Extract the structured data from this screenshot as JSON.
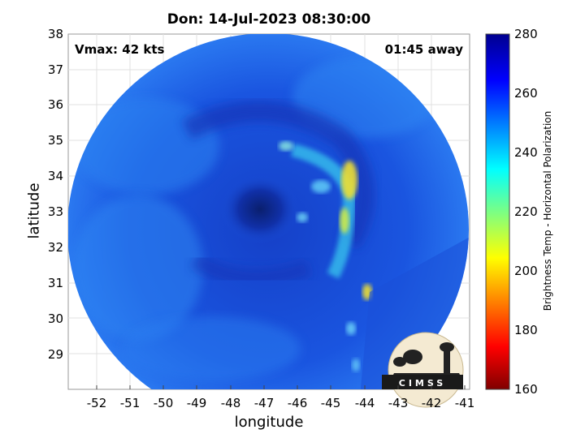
{
  "title": "Don: 14-Jul-2023 08:30:00",
  "vmax_label": "Vmax: 42 kts",
  "time_label": "01:45 away",
  "xlabel": "longitude",
  "ylabel": "latitude",
  "x_ticks": [
    "-52",
    "-51",
    "-50",
    "-49",
    "-48",
    "-47",
    "-46",
    "-45",
    "-44",
    "-43",
    "-42",
    "-41"
  ],
  "y_ticks": [
    "29",
    "30",
    "31",
    "32",
    "33",
    "34",
    "35",
    "36",
    "37",
    "38"
  ],
  "colorbar": {
    "label": "Brightness Temp - Horizontal Polarization",
    "ticks": [
      "160",
      "180",
      "200",
      "220",
      "240",
      "260",
      "280"
    ],
    "range": [
      160,
      280
    ],
    "colormap": "jet"
  },
  "logo": {
    "text": "CIMSS"
  },
  "colors": {
    "background": "#0a3fd6",
    "eye": "#0a2a80",
    "warm_band": "#ffe000"
  },
  "chart_data": {
    "type": "heatmap",
    "title": "Don: 14-Jul-2023 08:30:00",
    "xlabel": "longitude",
    "ylabel": "latitude",
    "xlim": [
      -52.9,
      -40.9
    ],
    "ylim": [
      28.0,
      38.0
    ],
    "colorbar_range": [
      160,
      280
    ],
    "storm_center": {
      "lon": -47.0,
      "lat": 33.0
    },
    "vmax_kts": 42
  }
}
